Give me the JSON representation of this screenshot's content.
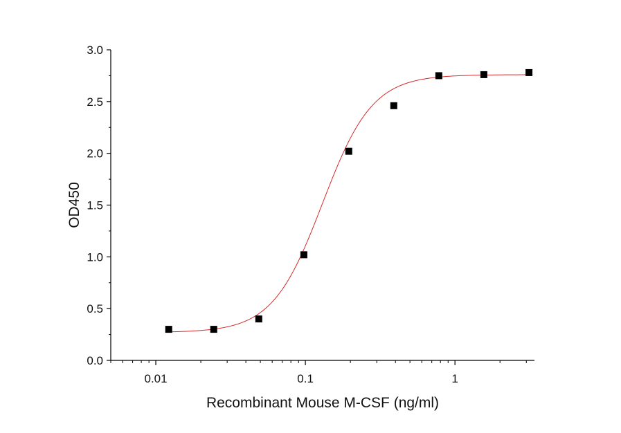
{
  "chart_data": {
    "type": "scatter",
    "title": "",
    "xlabel": "Recombinant Mouse M-CSF (ng/ml)",
    "ylabel": "OD450",
    "xscale": "log",
    "xlim": [
      0.005,
      3.4
    ],
    "ylim": [
      0,
      3.0
    ],
    "grid": false,
    "legend": "none",
    "xticks": [
      0.01,
      0.1,
      1
    ],
    "xtick_labels": [
      "0.01",
      "0.1",
      "1"
    ],
    "yticks": [
      0,
      0.5,
      1.0,
      1.5,
      2.0,
      2.5,
      3.0
    ],
    "ytick_labels": [
      "0.0",
      "0.5",
      "1.0",
      "1.5",
      "2.0",
      "2.5",
      "3.0"
    ],
    "series": [
      {
        "type": "scatter",
        "marker": "square",
        "color": "#000000",
        "x": [
          0.0122,
          0.0244,
          0.0488,
          0.0977,
          0.195,
          0.39,
          0.78,
          1.56,
          3.125
        ],
        "y": [
          0.3,
          0.3,
          0.4,
          1.02,
          2.02,
          2.46,
          2.75,
          2.76,
          2.78
        ]
      },
      {
        "type": "line",
        "fit": "4PL",
        "color": "#d42a2a",
        "bottom": 0.27,
        "top": 2.76,
        "ec50": 0.13,
        "hill": 2.6,
        "x_range": [
          0.0122,
          3.125
        ]
      }
    ]
  }
}
